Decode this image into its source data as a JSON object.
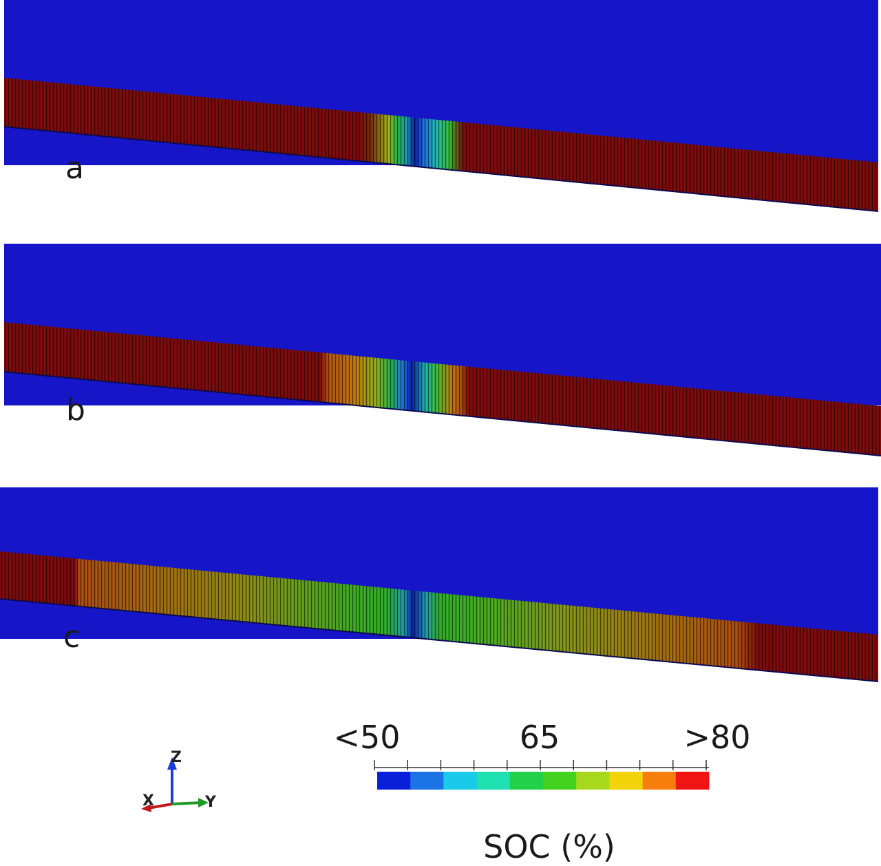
{
  "panels": [
    {
      "label": "a",
      "layer_color": "#7e0c0c"
    },
    {
      "label": "b",
      "layer_color": "#7e0c0c"
    },
    {
      "label": "c",
      "layer_color": "#7e0c0c"
    }
  ],
  "electrolyte_color": "#1616c8",
  "colorbar": {
    "tick_labels": [
      "<50",
      "65",
      ">80"
    ],
    "title": "SOC (%)",
    "colors": [
      "#0a1fd8",
      "#1c73e6",
      "#19cbe8",
      "#1fe0b0",
      "#22d04a",
      "#44d11f",
      "#a8d81e",
      "#f2d40a",
      "#f77e0c",
      "#f01414"
    ]
  },
  "triad": {
    "z_label": "Z",
    "x_label": "X",
    "y_label": "Y",
    "colors": {
      "z": "#1b3fd6",
      "x": "#c0191a",
      "y": "#1f9a2a"
    }
  }
}
